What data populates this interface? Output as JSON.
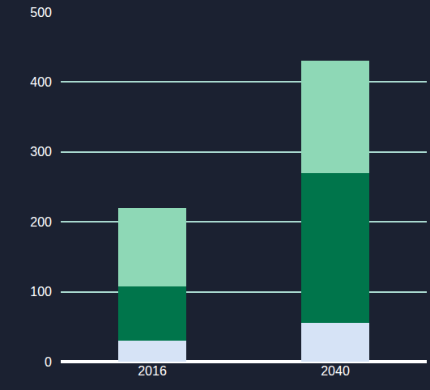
{
  "chart_data": {
    "type": "bar",
    "stacked": true,
    "grid": true,
    "categories": [
      "2016",
      "2040"
    ],
    "series": [
      {
        "color": "#d6e3f6",
        "values": [
          30,
          55
        ]
      },
      {
        "color": "#00754b",
        "values": [
          78,
          215
        ]
      },
      {
        "color": "#8ed8b6",
        "values": [
          112,
          160
        ]
      }
    ],
    "ylim": [
      0,
      500
    ],
    "yticks": [
      0,
      100,
      200,
      300,
      400,
      500
    ]
  }
}
